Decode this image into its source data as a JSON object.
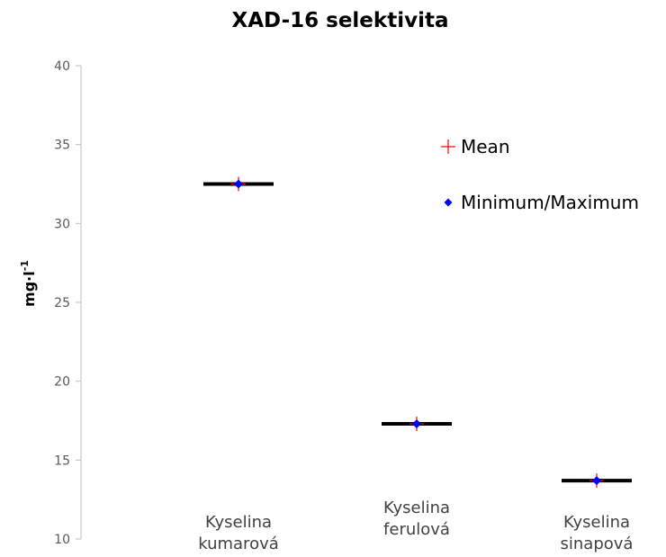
{
  "chart_data": {
    "type": "box",
    "title": "XAD-16 selektivita",
    "xlabel": "",
    "ylabel": "mg·l-1",
    "ylabel_base": "mg·l",
    "ylabel_sup": "-1",
    "ylim": [
      10,
      40
    ],
    "yticks": [
      10,
      15,
      20,
      25,
      30,
      35,
      40
    ],
    "categories": [
      {
        "lines": [
          "Kyselina",
          "kumarová"
        ]
      },
      {
        "lines": [
          "Kyselina",
          "ferulová"
        ]
      },
      {
        "lines": [
          "Kyselina",
          "sinapová"
        ]
      }
    ],
    "series": [
      {
        "name": "Mean",
        "marker": "plus",
        "color": "#ff0000",
        "values": [
          32.5,
          17.3,
          13.7
        ]
      },
      {
        "name": "Minimum/Maximum",
        "marker": "diamond",
        "color": "#0000ff",
        "values": [
          32.5,
          17.3,
          13.7
        ]
      }
    ],
    "box_line_values": [
      32.5,
      17.3,
      13.7
    ],
    "grid": false,
    "legend_position": "right"
  }
}
